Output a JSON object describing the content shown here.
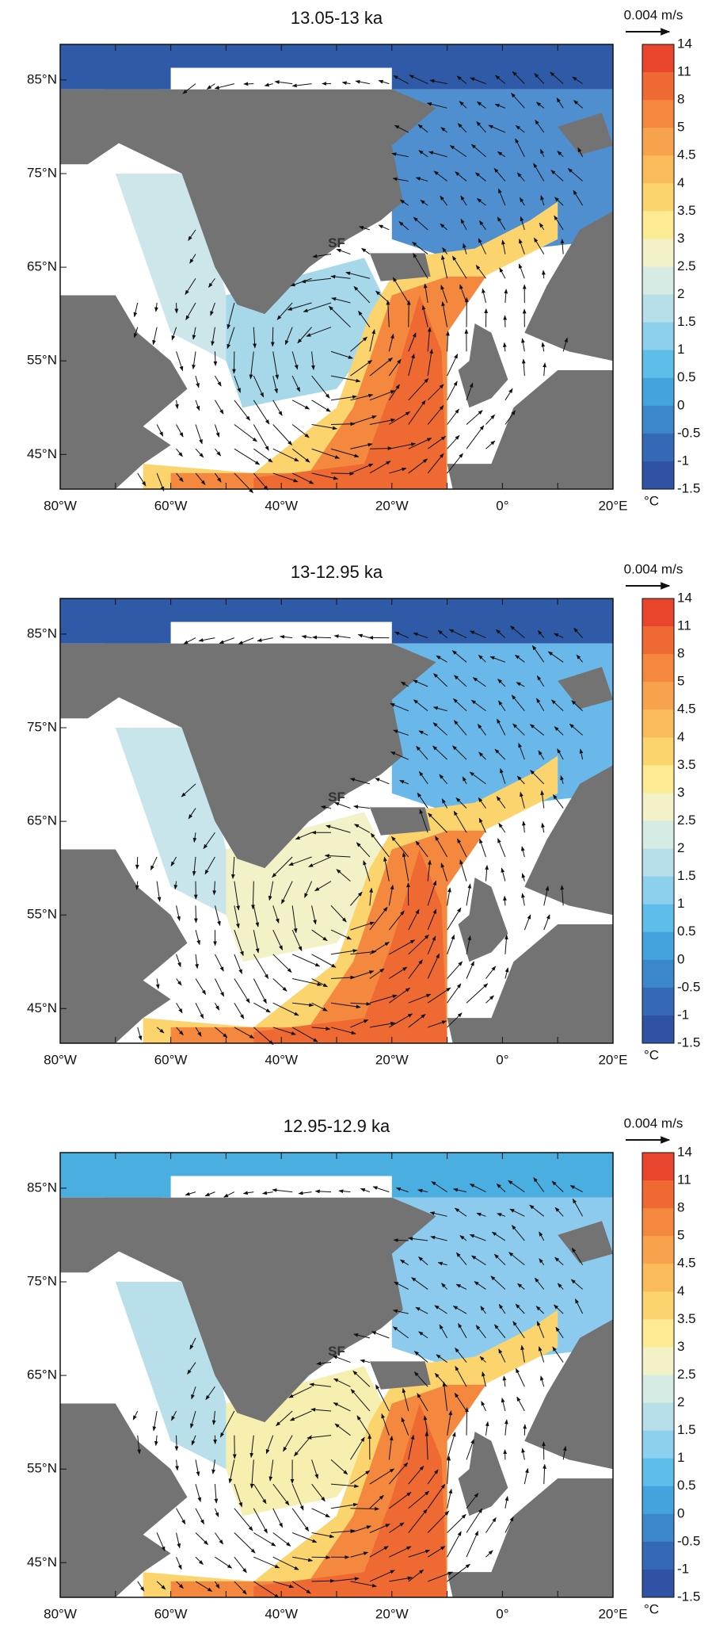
{
  "panels": [
    {
      "title": "13.05-13 ka",
      "scale_label": "0.004 m/s",
      "marker": "SF"
    },
    {
      "title": "13-12.95 ka",
      "scale_label": "0.004 m/s",
      "marker": "SF"
    },
    {
      "title": "12.95-12.9 ka",
      "scale_label": "0.004 m/s",
      "marker": "SF"
    }
  ],
  "lat_labels": [
    "85°N",
    "75°N",
    "65°N",
    "55°N",
    "45°N"
  ],
  "lon_labels": [
    "80°W",
    "60°W",
    "40°W",
    "20°W",
    "0°",
    "20°E"
  ],
  "colorbar": {
    "labels": [
      "14",
      "11",
      "8",
      "5",
      "4.5",
      "4",
      "3.5",
      "3",
      "2.5",
      "2",
      "1.5",
      "1",
      "0.5",
      "0",
      "-0.5",
      "-1",
      "-1.5"
    ],
    "unit": "°C"
  }
}
